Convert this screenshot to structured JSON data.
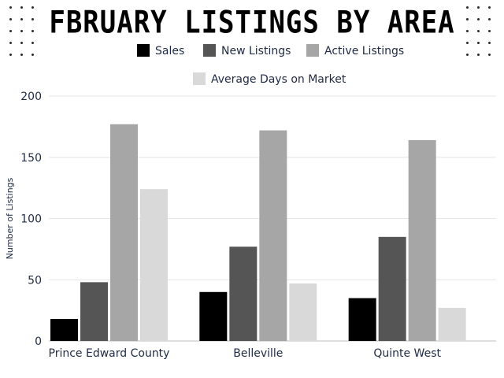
{
  "chart_data": {
    "type": "bar",
    "title": "FBRUARY LISTINGS BY AREA",
    "ylabel": "Number of Listings",
    "xlabel": "",
    "ylim": [
      0,
      200
    ],
    "yticks": [
      0,
      50,
      100,
      150,
      200
    ],
    "grid": true,
    "legend_position": "top",
    "categories": [
      "Prince Edward County",
      "Belleville",
      "Quinte West"
    ],
    "series": [
      {
        "name": "Sales",
        "color": "#000000",
        "values": [
          18,
          40,
          35
        ]
      },
      {
        "name": "New Listings",
        "color": "#555555",
        "values": [
          48,
          77,
          85
        ]
      },
      {
        "name": "Active Listings",
        "color": "#a6a6a6",
        "values": [
          177,
          172,
          164
        ]
      },
      {
        "name": "Average Days on Market",
        "color": "#d9d9d9",
        "values": [
          124,
          47,
          27
        ]
      }
    ]
  }
}
